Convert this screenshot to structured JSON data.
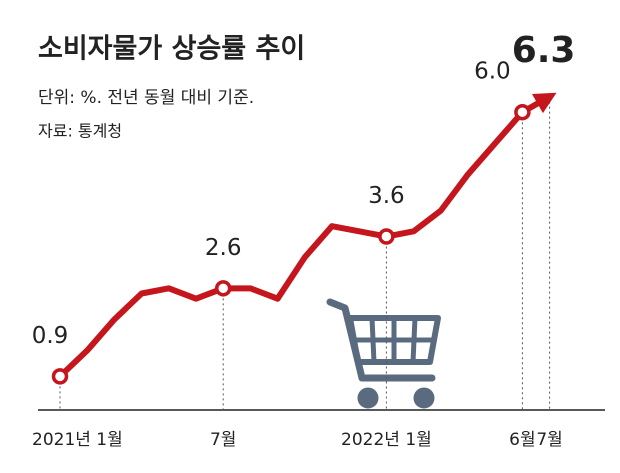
{
  "chart_data": {
    "type": "line",
    "title": "소비자물가 상승률 추이",
    "subtitle": "단위: %. 전년 동월 대비 기준.",
    "source": "자료: 통계청",
    "categories": [
      "2021년 1월",
      null,
      null,
      null,
      null,
      null,
      "7월",
      null,
      null,
      null,
      null,
      null,
      "2022년 1월",
      null,
      null,
      null,
      null,
      "6월",
      "7월"
    ],
    "values": [
      0.9,
      1.4,
      2.0,
      2.5,
      2.6,
      2.4,
      2.6,
      2.6,
      2.4,
      3.2,
      3.8,
      3.7,
      3.6,
      3.7,
      4.1,
      4.8,
      5.4,
      6.0,
      6.3
    ],
    "value_labels": [
      "0.9",
      null,
      null,
      null,
      null,
      null,
      "2.6",
      null,
      null,
      null,
      null,
      null,
      "3.6",
      null,
      null,
      null,
      null,
      "6.0",
      "6.3"
    ],
    "color": "#c4161c"
  }
}
